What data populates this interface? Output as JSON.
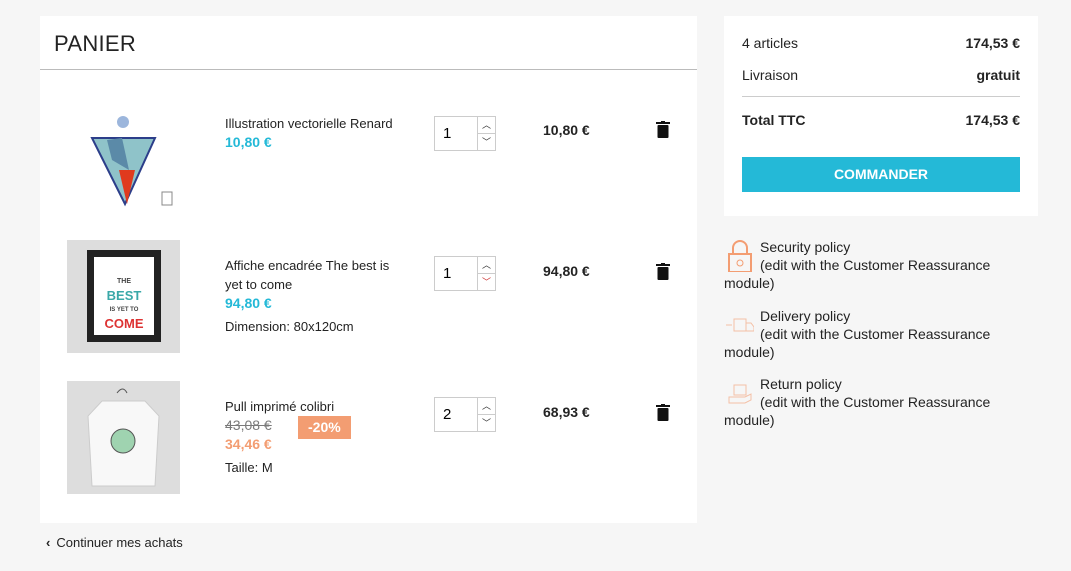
{
  "cart": {
    "title": "PANIER",
    "items": [
      {
        "name": "Illustration vectorielle Renard",
        "price": "10,80 €",
        "qty": "1",
        "total": "10,80 €"
      },
      {
        "name": "Affiche encadrée The best is yet to come",
        "price": "94,80 €",
        "attr_label": "Dimension:",
        "attr_value": "80x120cm",
        "qty": "1",
        "total": "94,80 €",
        "poster_text": [
          "THE",
          "BEST",
          "IS YET TO",
          "COME"
        ]
      },
      {
        "name": "Pull imprimé colibri",
        "old_price": "43,08 €",
        "discount": "-20%",
        "price": "34,46 €",
        "attr_label": "Taille:",
        "attr_value": "M",
        "qty": "2",
        "total": "68,93 €"
      }
    ]
  },
  "summary": {
    "articles_label": "4 articles",
    "articles_value": "174,53 €",
    "shipping_label": "Livraison",
    "shipping_value": "gratuit",
    "total_label": "Total TTC",
    "total_value": "174,53 €",
    "checkout": "COMMANDER"
  },
  "reassurance": [
    {
      "title": "Security policy",
      "desc": "(edit with the Customer Reassurance module)",
      "icon": "lock-icon"
    },
    {
      "title": "Delivery policy",
      "desc": "(edit with the Customer Reassurance module)",
      "icon": "truck-icon"
    },
    {
      "title": "Return policy",
      "desc": "(edit with the Customer Reassurance module)",
      "icon": "return-box-icon"
    }
  ],
  "continue": "Continuer mes achats",
  "colors": {
    "accent": "#24b9d7",
    "discount": "#f39d72"
  }
}
